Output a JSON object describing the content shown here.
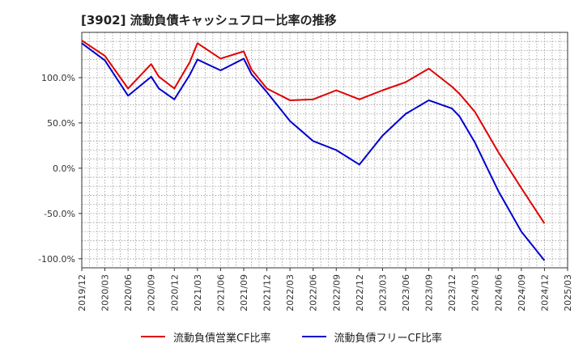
{
  "chart_data": {
    "type": "line",
    "title": "[3902]  流動負債キャッシュフロー比率の推移",
    "xlabel": "",
    "ylabel": "",
    "ylim": [
      -110,
      150
    ],
    "grid": true,
    "legend_position": "bottom",
    "y_ticks": [
      100,
      50,
      0,
      -50,
      -100
    ],
    "y_tick_labels": [
      "100.0%",
      "50.0%",
      "0.0%",
      "-50.0%",
      "-100.0%"
    ],
    "x_tick_labels": [
      "2019/12",
      "2020/03",
      "2020/06",
      "2020/09",
      "2020/12",
      "2021/03",
      "2021/06",
      "2021/09",
      "2021/12",
      "2022/03",
      "2022/06",
      "2022/09",
      "2022/12",
      "2023/03",
      "2023/06",
      "2023/09",
      "2023/12",
      "2024/03",
      "2024/06",
      "2024/09",
      "2024/12",
      "2025/03"
    ],
    "x_ticks": [
      "2019/12",
      "2020/03",
      "2020/06",
      "2020/09",
      "2020/12",
      "2021/03",
      "2021/06",
      "2021/09",
      "2021/12",
      "2022/03",
      "2022/06",
      "2022/09",
      "2022/12",
      "2023/03",
      "2023/06",
      "2023/09",
      "2023/12",
      "2024/03",
      "2024/06",
      "2024/09",
      "2024/12",
      "2025/03"
    ],
    "x": [
      "2019/12",
      "2020/03",
      "2020/06",
      "2020/09",
      "2020/10",
      "2020/12",
      "2021/02",
      "2021/03",
      "2021/06",
      "2021/09",
      "2021/10",
      "2021/12",
      "2022/03",
      "2022/06",
      "2022/09",
      "2022/12",
      "2023/03",
      "2023/06",
      "2023/09",
      "2023/12",
      "2024/01",
      "2024/03",
      "2024/06",
      "2024/09",
      "2024/12"
    ],
    "series": [
      {
        "name": "流動負債営業CF比率",
        "color": "#e00000",
        "values": [
          141,
          124,
          88,
          115,
          101,
          88,
          117,
          138,
          121,
          129,
          109,
          88,
          75,
          76,
          86,
          76,
          86,
          95,
          110,
          90,
          82,
          62,
          18,
          -22,
          -61
        ]
      },
      {
        "name": "流動負債フリーCF比率",
        "color": "#0000cc",
        "values": [
          138,
          119,
          80,
          101,
          88,
          76,
          103,
          120,
          108,
          121,
          104,
          84,
          52,
          30,
          20,
          4,
          36,
          60,
          75,
          66,
          57,
          28,
          -25,
          -70,
          -102
        ]
      }
    ]
  }
}
